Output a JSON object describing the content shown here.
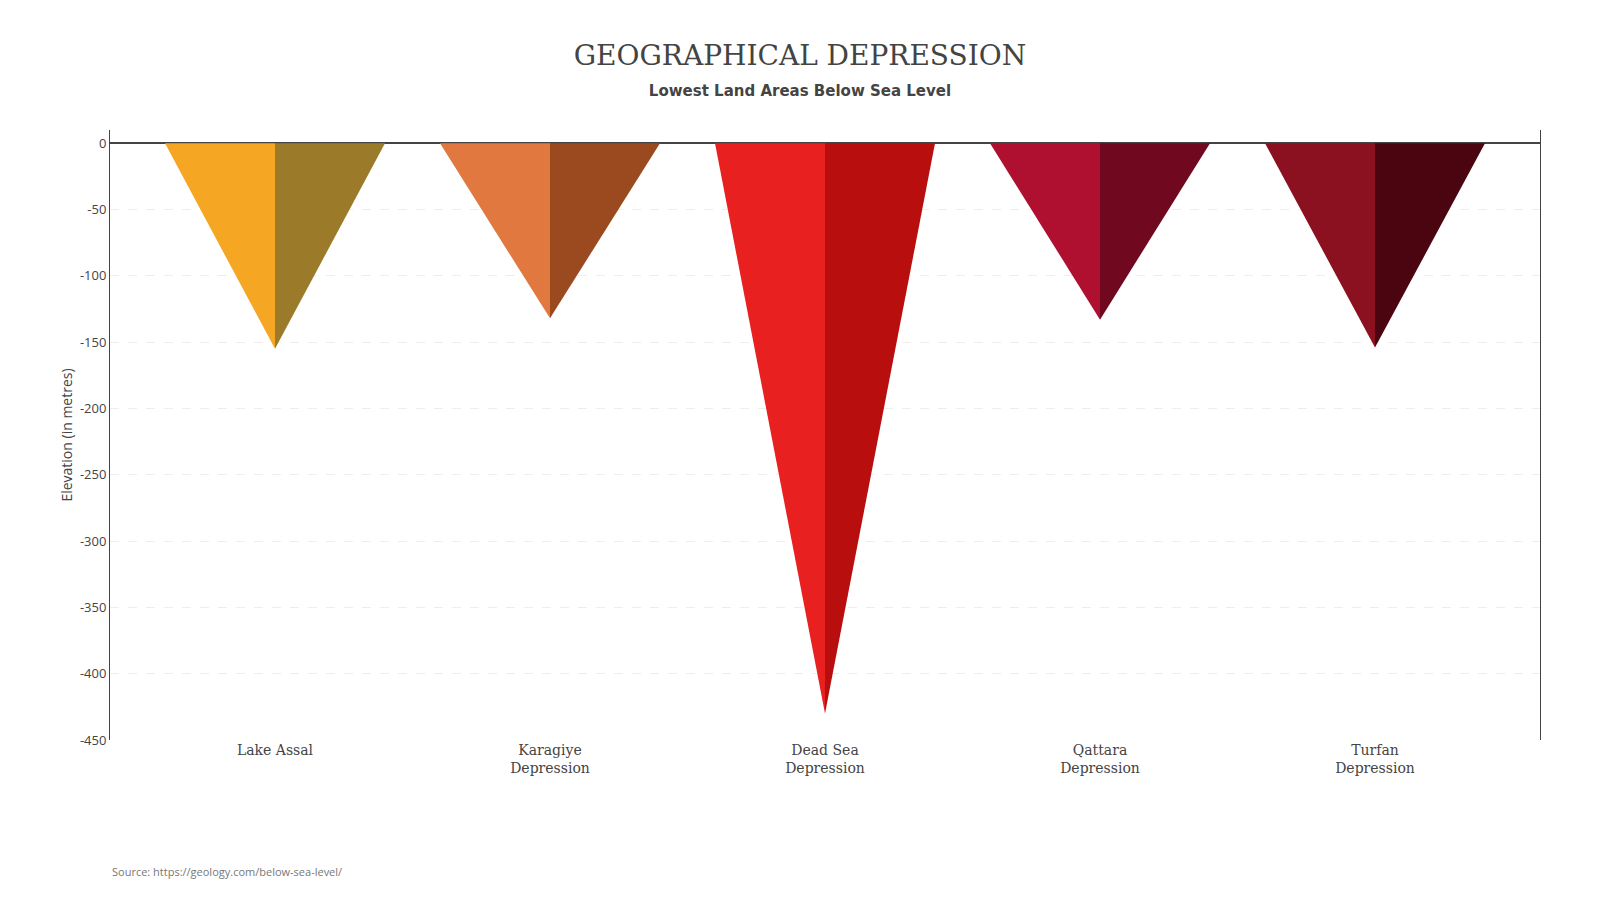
{
  "chart_data": {
    "type": "triangle",
    "title": "GEOGRAPHICAL DEPRESSION",
    "subtitle": "Lowest Land Areas Below Sea Level",
    "ylabel": "Elevation (in metres)",
    "source": "Source: https://geology.com/below-sea-level/",
    "categories": [
      "Lake Assal",
      "Karagiye\nDepression",
      "Dead Sea\nDepression",
      "Qattara\nDepression",
      "Turfan\nDepression"
    ],
    "values": [
      -155,
      -132,
      -430,
      -133,
      -154
    ],
    "colors": [
      [
        "#F5A623",
        "#9B7A2A"
      ],
      [
        "#E07840",
        "#9B4A20"
      ],
      [
        "#E82020",
        "#B80E0E"
      ],
      [
        "#B01030",
        "#700820"
      ],
      [
        "#8B1020",
        "#4A0510"
      ]
    ],
    "ylim": [
      -450,
      10
    ],
    "yticks": [
      0,
      -50,
      -100,
      -150,
      -200,
      -250,
      -300,
      -350,
      -400,
      -450
    ],
    "grid": true
  }
}
